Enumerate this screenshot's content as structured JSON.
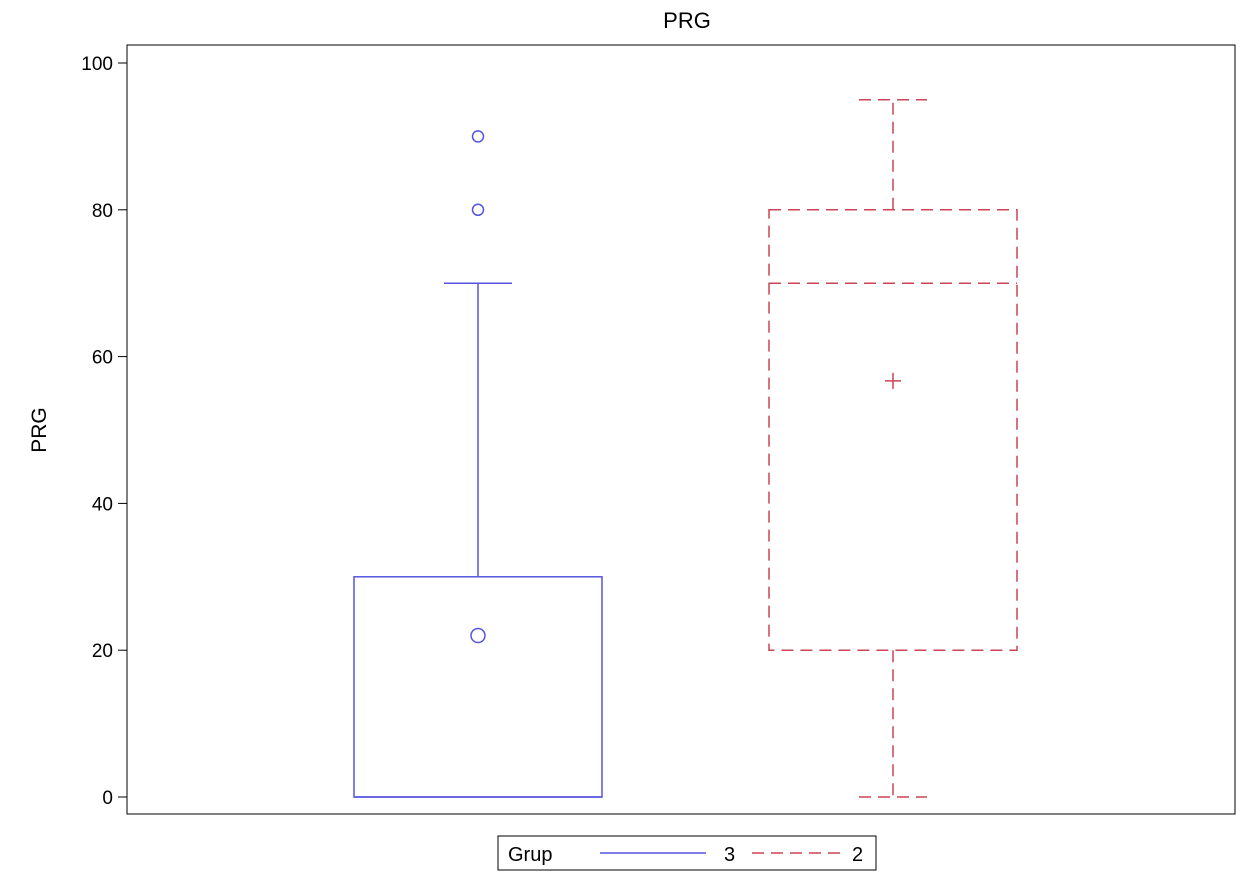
{
  "chart_data": {
    "type": "box",
    "title": "PRG",
    "ylabel": "PRG",
    "xlabel": "",
    "ylim": [
      -2,
      102
    ],
    "yticks": [
      0,
      20,
      40,
      60,
      80,
      100
    ],
    "grid": false,
    "legend": {
      "title": "Grup",
      "placement": "bottom-center"
    },
    "series": [
      {
        "name": "3",
        "color": "#5555e0",
        "line_style": "solid",
        "min": 0,
        "q1": 0,
        "median": 0,
        "q3": 30,
        "max": 70,
        "mean": 22,
        "outliers": [
          80,
          90
        ]
      },
      {
        "name": "2",
        "color": "#cc4455",
        "line_style": "dashed",
        "min": 0,
        "q1": 20,
        "median": 70,
        "q3": 80,
        "max": 95,
        "mean": 56.7,
        "outliers": []
      }
    ]
  }
}
